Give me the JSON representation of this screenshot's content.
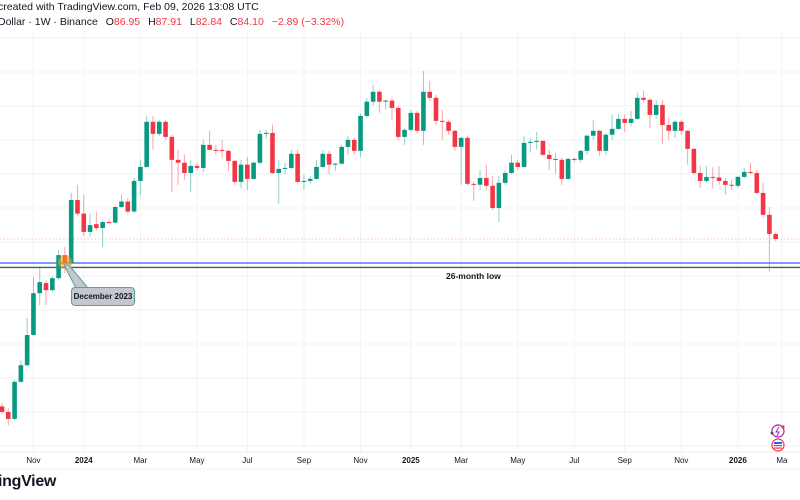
{
  "header": {
    "created_line": "created with TradingView.com, Feb 09, 2026 13:08 UTC",
    "symbol_line": "Dollar · 1W · Binance",
    "open_label": "O",
    "open": "86.95",
    "high_label": "H",
    "high": "87.91",
    "low_label": "L",
    "low": "82.84",
    "close_label": "C",
    "close": "84.10",
    "change": "−2.89 (−3.32%)"
  },
  "logo": "ingView",
  "annotations": {
    "callout": "December 2023",
    "low_label": "26-month low"
  },
  "colors": {
    "up": "#089981",
    "down": "#f23645",
    "support_blue": "#2962ff",
    "support_black": "#131722"
  },
  "chart_data": {
    "type": "candlestick",
    "title": "Dollar · 1W · Binance",
    "interval": "1W",
    "scale": "log",
    "x_tick_labels": [
      "Nov",
      "2024",
      "Mar",
      "May",
      "Jul",
      "Sep",
      "Nov",
      "2025",
      "Mar",
      "May",
      "Jul",
      "Sep",
      "Nov",
      "2026",
      "Ma"
    ],
    "x_tick_bold": [
      false,
      true,
      false,
      false,
      false,
      false,
      false,
      true,
      false,
      false,
      false,
      false,
      false,
      true,
      false
    ],
    "x_tick_candle_index": [
      5,
      13,
      22,
      31,
      39,
      48,
      57,
      65,
      73,
      82,
      91,
      99,
      108,
      117,
      124
    ],
    "last_price": 84.1,
    "support_levels": [
      {
        "name": "blue line",
        "price": 71.6
      },
      {
        "name": "26-month low",
        "price": 69.5
      }
    ],
    "highlight_candle_index": 10,
    "ohlc": [
      [
        27.4,
        28.0,
        26.0,
        26.4
      ],
      [
        26.4,
        27.0,
        24.1,
        25.2
      ],
      [
        25.2,
        32.7,
        25.0,
        32.3
      ],
      [
        32.3,
        37.3,
        32.1,
        36.1
      ],
      [
        36.1,
        49.5,
        35.9,
        44.2
      ],
      [
        44.2,
        65.2,
        44.0,
        58.5
      ],
      [
        58.5,
        69.2,
        54.0,
        63.0
      ],
      [
        62.6,
        63.8,
        54.0,
        59.7
      ],
      [
        59.7,
        65.5,
        59.0,
        64.7
      ],
      [
        64.7,
        78.1,
        64.0,
        75.5
      ],
      [
        75.5,
        79.7,
        66.9,
        71.5
      ],
      [
        71.5,
        114.5,
        70.5,
        109.2
      ],
      [
        109.2,
        120.9,
        98.3,
        99.7
      ],
      [
        99.7,
        112.9,
        85.8,
        88.2
      ],
      [
        88.2,
        99.7,
        85.2,
        92.3
      ],
      [
        92.9,
        101.1,
        89.3,
        90.5
      ],
      [
        90.5,
        95.4,
        79.7,
        94.2
      ],
      [
        94.2,
        96.0,
        93.0,
        93.8
      ],
      [
        93.8,
        105.6,
        93.5,
        104.2
      ],
      [
        104.2,
        112.9,
        103.5,
        108.1
      ],
      [
        108.1,
        110.7,
        99.0,
        101.1
      ],
      [
        101.1,
        126.6,
        100.4,
        124.1
      ],
      [
        124.1,
        142.9,
        112.9,
        136.3
      ],
      [
        136.3,
        191.9,
        135.4,
        184.4
      ],
      [
        184.4,
        191.9,
        152.8,
        170.1
      ],
      [
        170.1,
        186.8,
        167.7,
        184.4
      ],
      [
        184.4,
        186.8,
        163.4,
        166.7
      ],
      [
        166.7,
        169.1,
        115.3,
        142.9
      ],
      [
        142.9,
        152.8,
        120.9,
        140.2
      ],
      [
        140.2,
        147.8,
        125.0,
        130.9
      ],
      [
        130.9,
        142.9,
        115.3,
        137.2
      ],
      [
        137.2,
        140.0,
        133.5,
        135.4
      ],
      [
        135.4,
        163.4,
        131.8,
        158.0
      ],
      [
        158.0,
        173.6,
        151.8,
        152.8
      ],
      [
        152.8,
        158.0,
        148.0,
        152.6
      ],
      [
        152.6,
        163.4,
        145.0,
        151.8
      ],
      [
        151.8,
        152.8,
        132.7,
        141.9
      ],
      [
        141.9,
        142.9,
        120.9,
        123.3
      ],
      [
        123.3,
        142.9,
        118.4,
        138.4
      ],
      [
        138.4,
        145.9,
        116.8,
        125.8
      ],
      [
        125.8,
        141.0,
        125.0,
        140.2
      ],
      [
        140.2,
        174.7,
        138.4,
        170.1
      ],
      [
        170.1,
        175.0,
        165.0,
        171.2
      ],
      [
        171.2,
        181.0,
        130.0,
        130.9
      ],
      [
        130.9,
        142.9,
        106.6,
        134.5
      ],
      [
        134.5,
        140.2,
        129.6,
        135.4
      ],
      [
        135.4,
        152.8,
        134.5,
        148.8
      ],
      [
        148.8,
        152.8,
        122.5,
        123.3
      ],
      [
        123.3,
        129.6,
        116.8,
        124.1
      ],
      [
        124.1,
        128.0,
        122.0,
        125.8
      ],
      [
        125.8,
        142.9,
        125.0,
        136.3
      ],
      [
        136.3,
        152.8,
        135.4,
        148.8
      ],
      [
        148.8,
        151.8,
        129.6,
        138.4
      ],
      [
        138.4,
        140.2,
        132.7,
        139.3
      ],
      [
        139.3,
        158.0,
        138.4,
        155.9
      ],
      [
        155.9,
        168.0,
        147.8,
        163.4
      ],
      [
        163.4,
        165.6,
        147.8,
        151.8
      ],
      [
        151.8,
        194.5,
        145.9,
        191.9
      ],
      [
        191.9,
        216.5,
        189.4,
        211.0
      ],
      [
        211.0,
        236.3,
        205.5,
        225.5
      ],
      [
        225.5,
        228.5,
        196.0,
        211.0
      ],
      [
        211.0,
        214.0,
        200.0,
        212.5
      ],
      [
        212.5,
        216.5,
        186.9,
        202.4
      ],
      [
        202.4,
        205.2,
        163.4,
        166.7
      ],
      [
        166.7,
        177.0,
        158.0,
        174.7
      ],
      [
        174.7,
        199.7,
        172.4,
        195.8
      ],
      [
        195.8,
        198.3,
        171.2,
        173.6
      ],
      [
        173.6,
        259.5,
        158.0,
        225.5
      ],
      [
        225.5,
        242.6,
        212.5,
        216.5
      ],
      [
        216.5,
        221.0,
        180.5,
        185.6
      ],
      [
        185.6,
        199.7,
        163.4,
        184.4
      ],
      [
        184.4,
        186.8,
        169.1,
        173.6
      ],
      [
        173.6,
        174.7,
        151.8,
        155.9
      ],
      [
        155.9,
        166.7,
        120.9,
        165.6
      ],
      [
        165.6,
        168.0,
        120.1,
        121.7
      ],
      [
        121.7,
        123.3,
        108.6,
        121.0
      ],
      [
        121.0,
        133.5,
        116.8,
        126.6
      ],
      [
        126.6,
        138.4,
        116.8,
        120.1
      ],
      [
        120.1,
        128.3,
        102.1,
        103.5
      ],
      [
        103.5,
        128.3,
        94.2,
        122.5
      ],
      [
        122.5,
        133.5,
        120.9,
        130.9
      ],
      [
        130.9,
        147.8,
        129.6,
        140.2
      ],
      [
        140.2,
        142.9,
        133.5,
        136.3
      ],
      [
        136.3,
        168.0,
        135.4,
        160.1
      ],
      [
        160.1,
        165.0,
        150.0,
        161.2
      ],
      [
        161.2,
        172.4,
        152.8,
        162.3
      ],
      [
        162.3,
        163.0,
        147.0,
        147.8
      ],
      [
        147.8,
        152.8,
        133.5,
        143.8
      ],
      [
        143.8,
        150.0,
        130.0,
        143.0
      ],
      [
        143.0,
        145.0,
        120.9,
        125.8
      ],
      [
        125.8,
        145.0,
        125.0,
        143.8
      ],
      [
        143.8,
        145.0,
        141.0,
        143.0
      ],
      [
        143.0,
        152.8,
        140.5,
        151.8
      ],
      [
        151.8,
        169.1,
        147.8,
        168.0
      ],
      [
        168.0,
        186.8,
        163.4,
        173.6
      ],
      [
        173.6,
        174.7,
        147.0,
        151.8
      ],
      [
        151.8,
        171.2,
        147.8,
        169.1
      ],
      [
        169.1,
        194.0,
        163.4,
        175.9
      ],
      [
        175.9,
        194.0,
        174.7,
        188.1
      ],
      [
        188.1,
        194.0,
        172.4,
        183.1
      ],
      [
        183.1,
        198.3,
        179.3,
        188.1
      ],
      [
        188.1,
        224.0,
        186.8,
        216.5
      ],
      [
        216.5,
        227.0,
        210.0,
        213.7
      ],
      [
        213.7,
        216.5,
        177.0,
        193.2
      ],
      [
        193.2,
        213.7,
        188.1,
        206.5
      ],
      [
        206.5,
        213.7,
        159.0,
        180.5
      ],
      [
        180.5,
        189.4,
        163.4,
        173.6
      ],
      [
        173.6,
        186.8,
        165.6,
        184.4
      ],
      [
        184.4,
        186.8,
        169.1,
        173.6
      ],
      [
        173.6,
        174.7,
        138.4,
        153.8
      ],
      [
        153.8,
        154.8,
        129.6,
        130.9
      ],
      [
        130.9,
        137.2,
        118.4,
        124.1
      ],
      [
        124.1,
        137.2,
        122.5,
        127.5
      ],
      [
        127.5,
        136.0,
        118.0,
        127.0
      ],
      [
        127.0,
        137.2,
        120.9,
        124.1
      ],
      [
        124.1,
        126.6,
        112.9,
        120.9
      ],
      [
        120.9,
        125.0,
        116.8,
        120.1
      ],
      [
        120.1,
        128.3,
        118.4,
        127.5
      ],
      [
        127.5,
        135.4,
        126.6,
        131.8
      ],
      [
        131.8,
        140.2,
        130.0,
        130.9
      ],
      [
        130.9,
        133.5,
        113.7,
        114.5
      ],
      [
        114.5,
        122.5,
        97.6,
        98.9
      ],
      [
        98.9,
        104.2,
        67.5,
        87.0
      ],
      [
        86.95,
        87.91,
        82.84,
        84.1
      ]
    ]
  }
}
